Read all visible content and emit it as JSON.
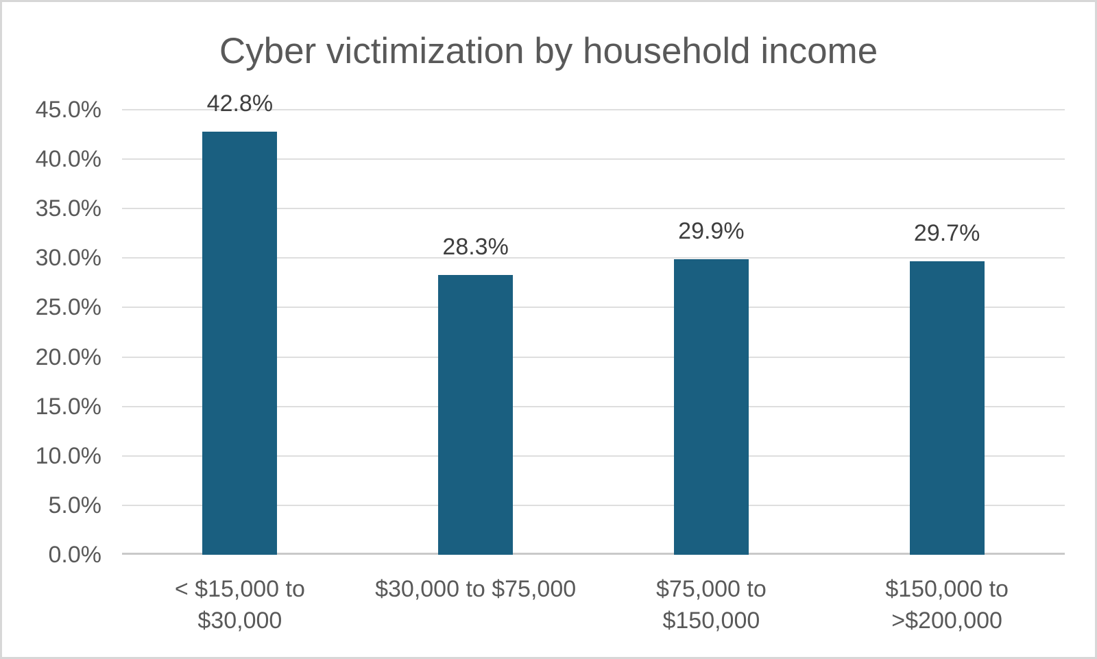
{
  "chart_data": {
    "type": "bar",
    "title": "Cyber victimization by household income",
    "xlabel": "",
    "ylabel": "",
    "categories": [
      "< $15,000 to $30,000",
      "$30,000 to $75,000",
      "$75,000 to $150,000",
      "$150,000 to >$200,000"
    ],
    "category_lines": [
      [
        "< $15,000 to",
        "$30,000"
      ],
      [
        "$30,000 to $75,000"
      ],
      [
        "$75,000 to",
        "$150,000"
      ],
      [
        "$150,000 to",
        ">$200,000"
      ]
    ],
    "values": [
      42.8,
      28.3,
      29.9,
      29.7
    ],
    "value_labels": [
      "42.8%",
      "28.3%",
      "29.9%",
      "29.7%"
    ],
    "ylim": [
      0,
      45
    ],
    "grid": true,
    "legend_position": "none",
    "y_ticks": [
      {
        "value": 0,
        "label": "0.0%"
      },
      {
        "value": 5,
        "label": "5.0%"
      },
      {
        "value": 10,
        "label": "10.0%"
      },
      {
        "value": 15,
        "label": "15.0%"
      },
      {
        "value": 20,
        "label": "20.0%"
      },
      {
        "value": 25,
        "label": "25.0%"
      },
      {
        "value": 30,
        "label": "30.0%"
      },
      {
        "value": 35,
        "label": "35.0%"
      },
      {
        "value": 40,
        "label": "40.0%"
      },
      {
        "value": 45,
        "label": "45.0%"
      }
    ],
    "colors": {
      "bar": "#1a5f80",
      "title_text": "#595959",
      "tick_text": "#595959",
      "category_text": "#595959",
      "value_label_text": "#3f3f3f",
      "gridline": "#dedede",
      "axis_line": "#c9c9c9",
      "background": "#ffffff",
      "frame_border": "#d7d7d7"
    }
  }
}
